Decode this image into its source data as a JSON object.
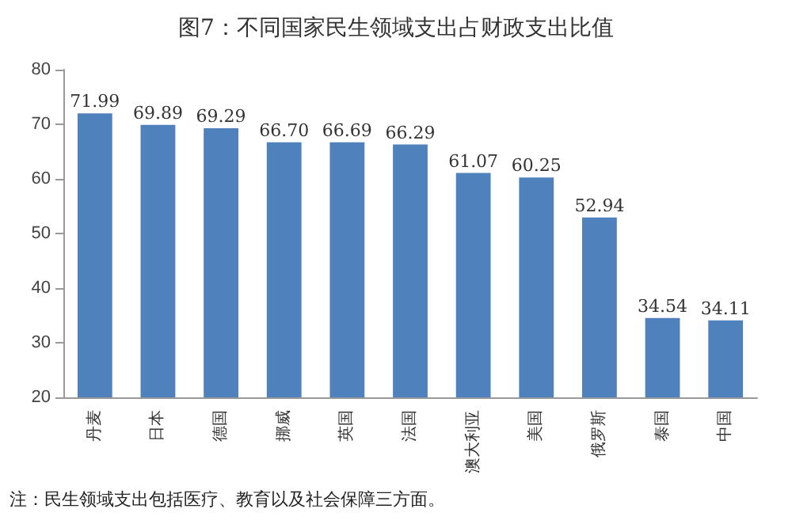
{
  "chart_data": {
    "type": "bar",
    "title": "图7：不同国家民生领域支出占财政支出比值",
    "categories": [
      "丹麦",
      "日本",
      "德国",
      "挪威",
      "英国",
      "法国",
      "澳大利亚",
      "美国",
      "俄罗斯",
      "泰国",
      "中国"
    ],
    "values": [
      71.99,
      69.89,
      69.29,
      66.7,
      66.69,
      66.29,
      61.07,
      60.25,
      52.94,
      34.54,
      34.11
    ],
    "value_labels": [
      "71.99",
      "69.89",
      "69.29",
      "66.70",
      "66.69",
      "66.29",
      "61.07",
      "60.25",
      "52.94",
      "34.54",
      "34.11"
    ],
    "color": "#4f81bd",
    "ylim": [
      20,
      80
    ],
    "yticks": [
      20,
      30,
      40,
      50,
      60,
      70,
      80
    ],
    "grid": false,
    "annotations": [
      "注：民生领域支出包括医疗、教育以及社会保障三方面。"
    ]
  }
}
